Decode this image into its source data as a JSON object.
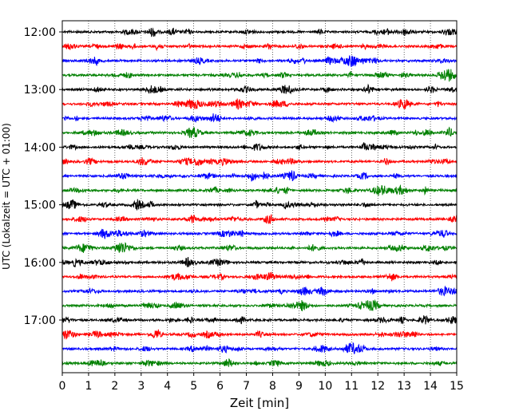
{
  "chart_data": {
    "type": "line",
    "title": "",
    "xlabel": "Zeit  [min]",
    "ylabel": "UTC (Lokalzeit = UTC + 01:00)",
    "xlim": [
      0,
      15
    ],
    "x_ticks": [
      0,
      1,
      2,
      3,
      4,
      5,
      6,
      7,
      8,
      9,
      10,
      11,
      12,
      13,
      14,
      15
    ],
    "x_tick_labels": [
      "0",
      "1",
      "2",
      "3",
      "4",
      "5",
      "6",
      "7",
      "8",
      "9",
      "10",
      "11",
      "12",
      "13",
      "14",
      "15"
    ],
    "y_tick_labels": [
      "12:00",
      "13:00",
      "14:00",
      "15:00",
      "16:00",
      "17:00"
    ],
    "y_ticks_row_index": [
      0,
      4,
      8,
      12,
      16,
      20
    ],
    "grid": "vertical-dotted",
    "trace_colors": [
      "#000000",
      "#ff0000",
      "#0000ff",
      "#008000"
    ],
    "traces": [
      {
        "start": "12:00",
        "color": "#000000"
      },
      {
        "start": "12:15",
        "color": "#ff0000"
      },
      {
        "start": "12:30",
        "color": "#0000ff"
      },
      {
        "start": "12:45",
        "color": "#008000"
      },
      {
        "start": "13:00",
        "color": "#000000"
      },
      {
        "start": "13:15",
        "color": "#ff0000"
      },
      {
        "start": "13:30",
        "color": "#0000ff"
      },
      {
        "start": "13:45",
        "color": "#008000"
      },
      {
        "start": "14:00",
        "color": "#000000"
      },
      {
        "start": "14:15",
        "color": "#ff0000"
      },
      {
        "start": "14:30",
        "color": "#0000ff"
      },
      {
        "start": "14:45",
        "color": "#008000"
      },
      {
        "start": "15:00",
        "color": "#000000"
      },
      {
        "start": "15:15",
        "color": "#ff0000"
      },
      {
        "start": "15:30",
        "color": "#0000ff"
      },
      {
        "start": "15:45",
        "color": "#008000"
      },
      {
        "start": "16:00",
        "color": "#000000"
      },
      {
        "start": "16:15",
        "color": "#ff0000"
      },
      {
        "start": "16:30",
        "color": "#0000ff"
      },
      {
        "start": "16:45",
        "color": "#008000"
      },
      {
        "start": "17:00",
        "color": "#000000"
      },
      {
        "start": "17:15",
        "color": "#ff0000"
      },
      {
        "start": "17:30",
        "color": "#0000ff"
      },
      {
        "start": "17:45",
        "color": "#008000"
      }
    ]
  }
}
